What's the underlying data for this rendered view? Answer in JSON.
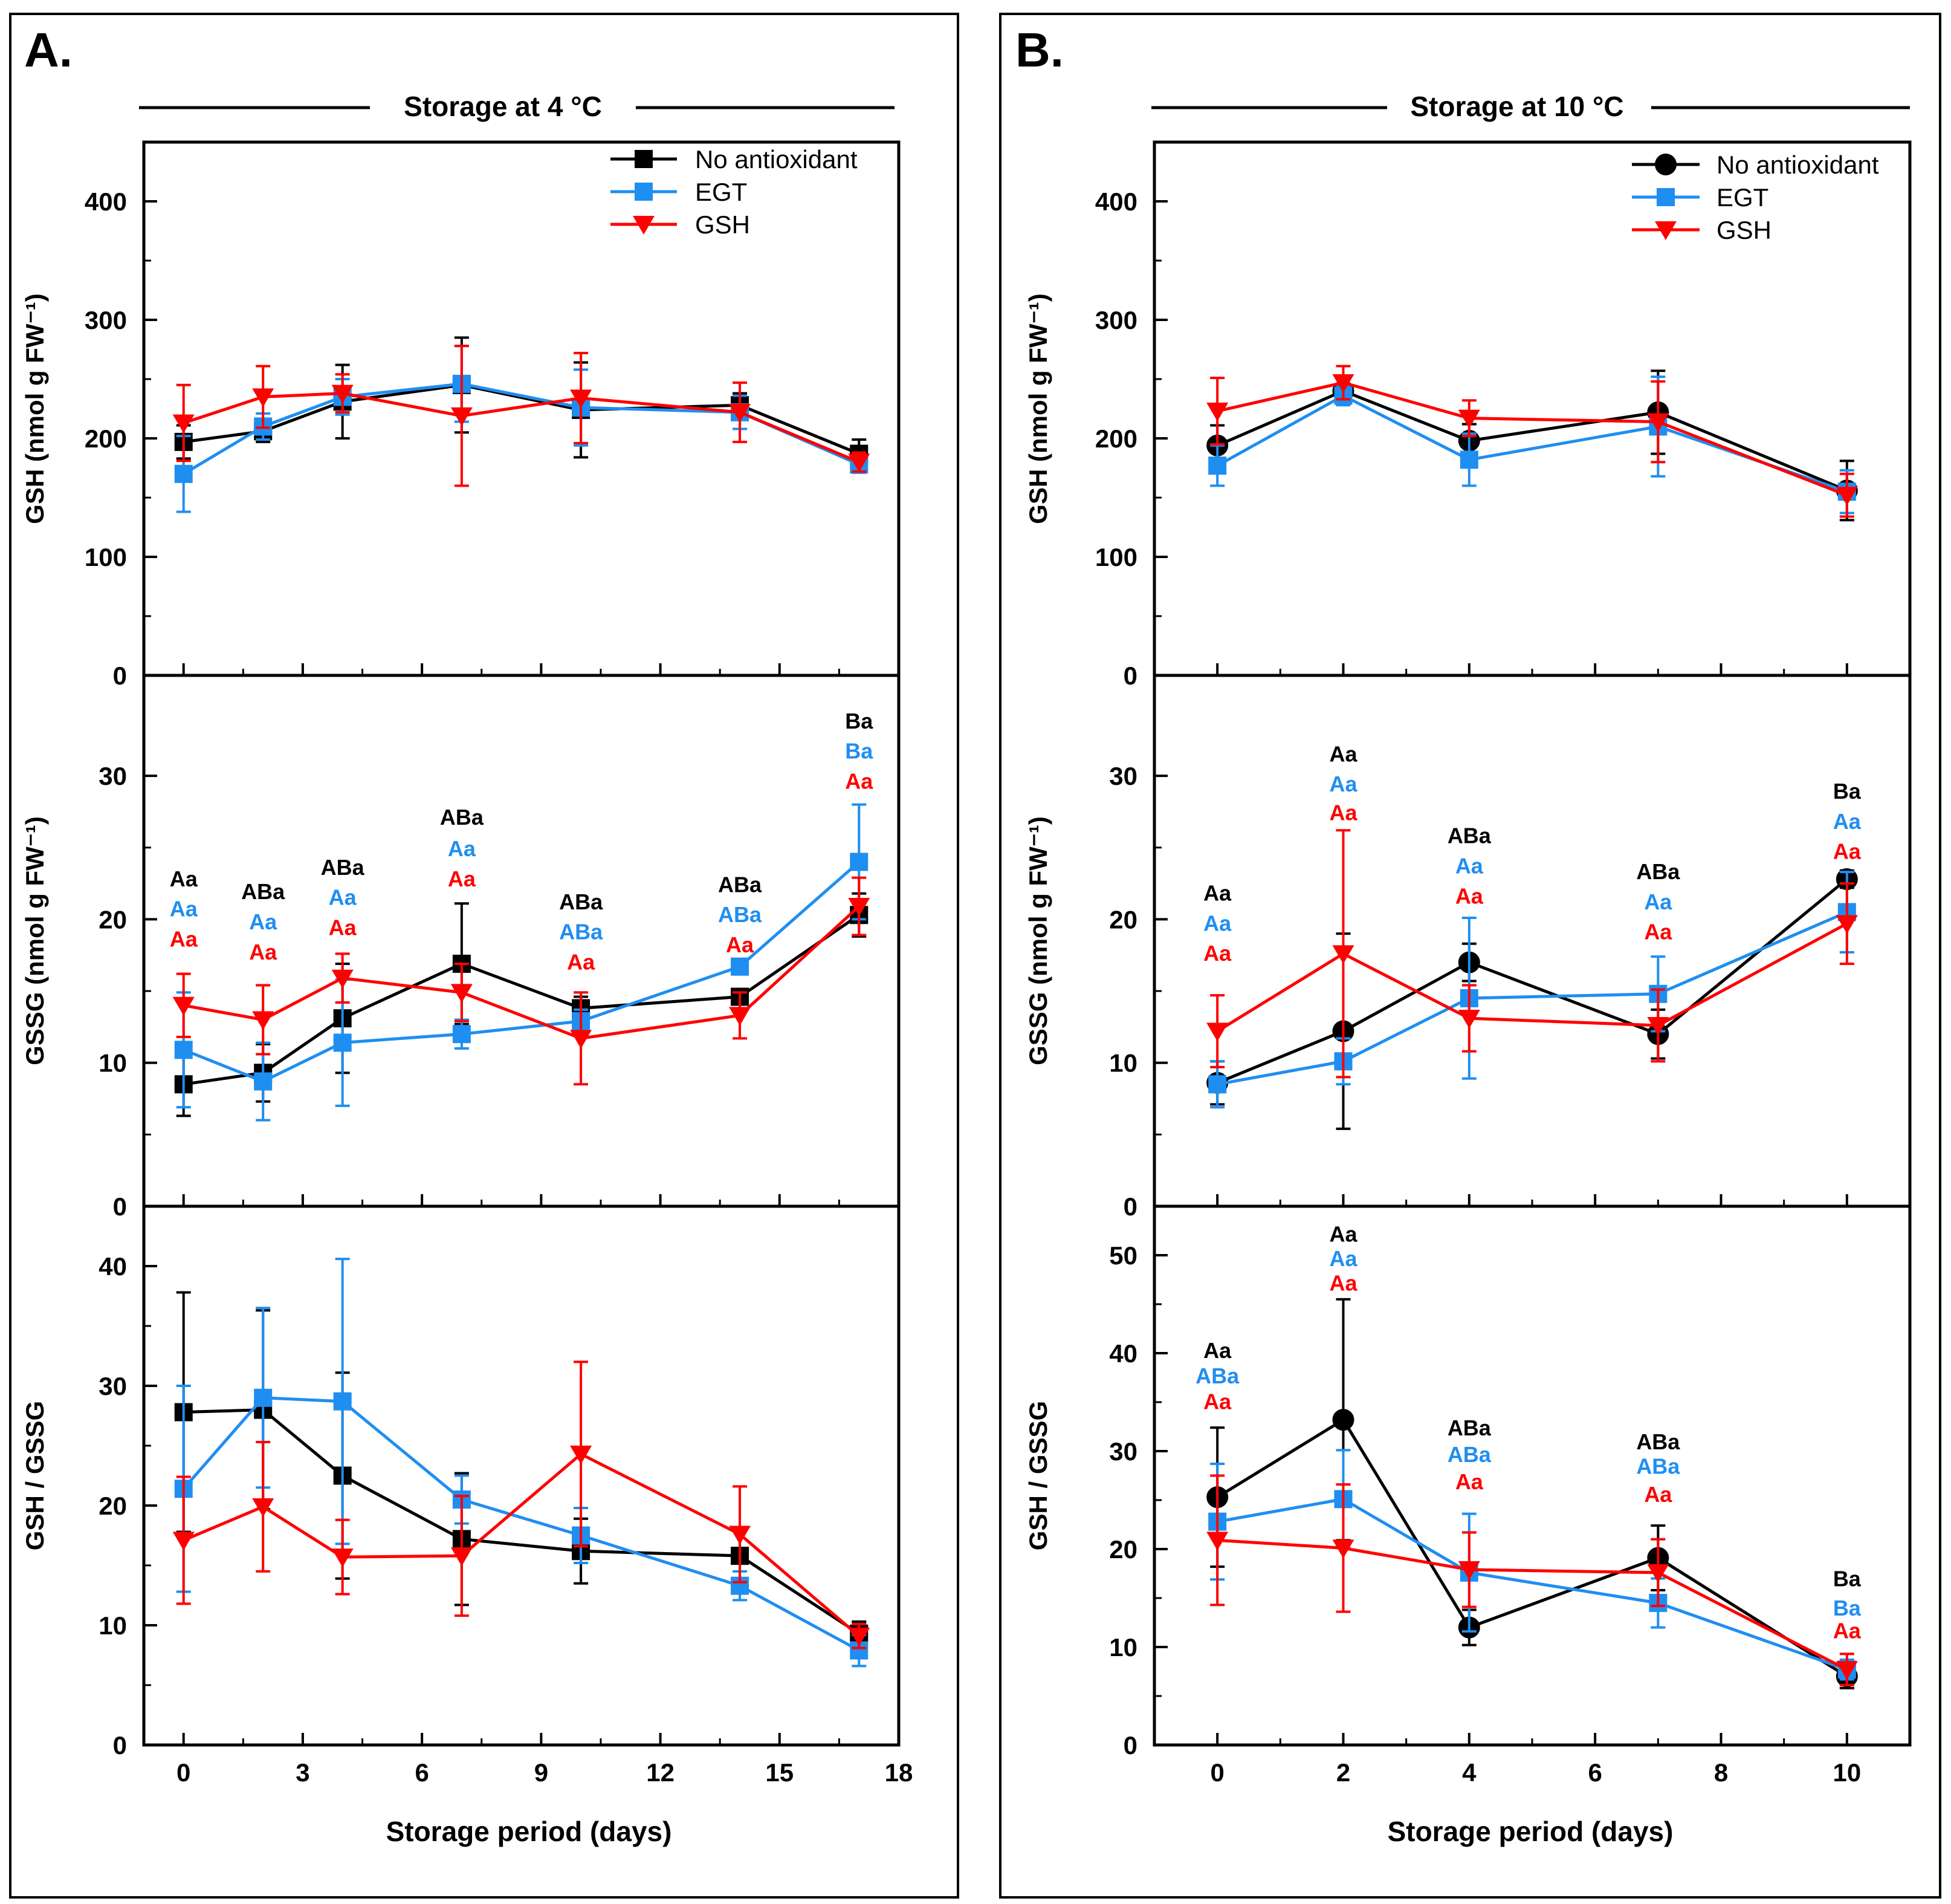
{
  "colors": {
    "black": "#000000",
    "blue": "#1f8ef1",
    "red": "#ff0000"
  },
  "chart_data": [
    {
      "panel": "A.",
      "type": "line",
      "header": "Storage at 4 °C",
      "xlabel": "Storage period (days)",
      "xlim": [
        -1,
        18
      ],
      "xticks": [
        0,
        3,
        6,
        9,
        12,
        15,
        18
      ],
      "x": [
        0,
        2,
        4,
        7,
        10,
        14,
        17
      ],
      "legend": {
        "position": "top-right",
        "entries": [
          "No antioxidant",
          "EGT",
          "GSH"
        ]
      },
      "subplots": [
        {
          "ylabel": "GSH (nmol g FW⁻¹)",
          "ylim": [
            0,
            450
          ],
          "yticks": [
            0,
            100,
            200,
            300,
            400
          ],
          "series": [
            {
              "name": "No antioxidant",
              "values": [
                197,
                206,
                231,
                245,
                224,
                228,
                187
              ],
              "errors": [
                14,
                9,
                31,
                40,
                40,
                10,
                12
              ]
            },
            {
              "name": "EGT",
              "values": [
                170,
                210,
                235,
                246,
                226,
                222,
                178
              ],
              "errors": [
                32,
                11,
                15,
                32,
                32,
                14,
                7
              ]
            },
            {
              "name": "GSH",
              "values": [
                213,
                235,
                238,
                219,
                234,
                222,
                180
              ],
              "errors": [
                32,
                26,
                16,
                59,
                38,
                25,
                8
              ]
            }
          ],
          "annotations": []
        },
        {
          "ylabel": "GSSG (nmol g FW⁻¹)",
          "ylim": [
            0,
            37
          ],
          "yticks": [
            0,
            10,
            20,
            30
          ],
          "series": [
            {
              "name": "No antioxidant",
              "values": [
                8.5,
                9.3,
                13.1,
                16.9,
                13.8,
                14.6,
                20.3
              ],
              "errors": [
                2.2,
                2.0,
                3.8,
                4.2,
                0.8,
                0.5,
                1.5
              ]
            },
            {
              "name": "EGT",
              "values": [
                10.9,
                8.7,
                11.4,
                12.0,
                12.9,
                16.7,
                24.0
              ],
              "errors": [
                4.0,
                2.7,
                4.4,
                1.0,
                0.8,
                0.5,
                4.0
              ]
            },
            {
              "name": "GSH",
              "values": [
                14.0,
                13.0,
                15.9,
                14.9,
                11.7,
                13.3,
                20.9
              ],
              "errors": [
                2.2,
                2.4,
                1.7,
                2.0,
                3.2,
                1.6,
                2.0
              ]
            }
          ],
          "annotations": [
            {
              "x": 0,
              "y": [
                22.3,
                20.2,
                18.1
              ],
              "labels": [
                "Aa",
                "Aa",
                "Aa"
              ]
            },
            {
              "x": 2,
              "y": [
                21.4,
                19.3,
                17.2
              ],
              "labels": [
                "ABa",
                "Aa",
                "Aa"
              ]
            },
            {
              "x": 4,
              "y": [
                23.1,
                21.0,
                18.9
              ],
              "labels": [
                "ABa",
                "Aa",
                "Aa"
              ]
            },
            {
              "x": 7,
              "y": [
                26.6,
                24.4,
                22.3
              ],
              "labels": [
                "ABa",
                "Aa",
                "Aa"
              ]
            },
            {
              "x": 10,
              "y": [
                20.7,
                18.6,
                16.5
              ],
              "labels": [
                "ABa",
                "ABa",
                "Aa"
              ]
            },
            {
              "x": 14,
              "y": [
                21.9,
                19.8,
                17.7
              ],
              "labels": [
                "ABa",
                "ABa",
                "Aa"
              ]
            },
            {
              "x": 17,
              "y": [
                33.3,
                31.2,
                29.1
              ],
              "labels": [
                "Ba",
                "Ba",
                "Aa"
              ]
            }
          ]
        },
        {
          "ylabel": "GSH / GSSG",
          "ylim": [
            0,
            45
          ],
          "yticks": [
            0,
            10,
            20,
            30,
            40
          ],
          "series": [
            {
              "name": "No antioxidant",
              "values": [
                27.8,
                28.0,
                22.5,
                17.2,
                16.2,
                15.8,
                9.3
              ],
              "errors": [
                10.0,
                8.3,
                8.6,
                5.5,
                2.7,
                2.4,
                1.0
              ]
            },
            {
              "name": "EGT",
              "values": [
                21.4,
                29.0,
                28.7,
                20.5,
                17.5,
                13.3,
                7.9
              ],
              "errors": [
                8.6,
                7.5,
                11.9,
                2.0,
                2.3,
                1.2,
                1.3
              ]
            },
            {
              "name": "GSH",
              "values": [
                17.1,
                19.9,
                15.7,
                15.8,
                24.3,
                17.6,
                9.1
              ],
              "errors": [
                5.3,
                5.4,
                3.1,
                5.0,
                7.7,
                4.0,
                1.0
              ]
            }
          ],
          "annotations": []
        }
      ]
    },
    {
      "panel": "B.",
      "type": "line",
      "header": "Storage at 10 °C",
      "xlabel": "Storage period (days)",
      "xlim": [
        -1,
        11
      ],
      "xticks": [
        0,
        2,
        4,
        6,
        8,
        10
      ],
      "x": [
        0,
        2,
        4,
        7,
        10
      ],
      "legend": {
        "position": "top-right",
        "entries": [
          "No antioxidant",
          "EGT",
          "GSH"
        ]
      },
      "subplots": [
        {
          "ylabel": "GSH (nmol g FW⁻¹)",
          "ylim": [
            0,
            450
          ],
          "yticks": [
            0,
            100,
            200,
            300,
            400
          ],
          "series": [
            {
              "name": "No antioxidant",
              "values": [
                194,
                240,
                198,
                222,
                156
              ],
              "errors": [
                17,
                10,
                14,
                35,
                25
              ]
            },
            {
              "name": "EGT",
              "values": [
                177,
                236,
                182,
                210,
                155
              ],
              "errors": [
                17,
                8,
                22,
                42,
                18
              ]
            },
            {
              "name": "GSH",
              "values": [
                223,
                247,
                217,
                214,
                152
              ],
              "errors": [
                28,
                14,
                15,
                34,
                18
              ]
            }
          ],
          "annotations": []
        },
        {
          "ylabel": "GSSG (nmol g FW⁻¹)",
          "ylim": [
            0,
            37
          ],
          "yticks": [
            0,
            10,
            20,
            30
          ],
          "series": [
            {
              "name": "No antioxidant",
              "values": [
                8.6,
                12.2,
                17.0,
                12.0,
                22.8
              ],
              "errors": [
                1.5,
                6.8,
                1.3,
                1.7,
                0.6
              ]
            },
            {
              "name": "EGT",
              "values": [
                8.5,
                10.1,
                14.5,
                14.8,
                20.5
              ],
              "errors": [
                1.6,
                1.6,
                5.6,
                2.6,
                2.8
              ]
            },
            {
              "name": "GSH",
              "values": [
                12.2,
                17.6,
                13.1,
                12.6,
                19.7
              ],
              "errors": [
                2.5,
                8.6,
                2.3,
                2.5,
                2.8
              ]
            }
          ],
          "annotations": [
            {
              "x": 0,
              "y": [
                21.3,
                19.2,
                17.1
              ],
              "labels": [
                "Aa",
                "Aa",
                "Aa"
              ]
            },
            {
              "x": 2,
              "y": [
                31.0,
                28.9,
                26.9
              ],
              "labels": [
                "Aa",
                "Aa",
                "Aa"
              ]
            },
            {
              "x": 4,
              "y": [
                25.3,
                23.2,
                21.1
              ],
              "labels": [
                "ABa",
                "Aa",
                "Aa"
              ]
            },
            {
              "x": 7,
              "y": [
                22.8,
                20.7,
                18.6
              ],
              "labels": [
                "ABa",
                "Aa",
                "Aa"
              ]
            },
            {
              "x": 10,
              "y": [
                28.4,
                26.3,
                24.2
              ],
              "labels": [
                "Ba",
                "Aa",
                "Aa"
              ]
            }
          ]
        },
        {
          "ylabel": "GSH / GSSG",
          "ylim": [
            0,
            55
          ],
          "yticks": [
            0,
            10,
            20,
            30,
            40,
            50
          ],
          "series": [
            {
              "name": "No antioxidant",
              "values": [
                25.3,
                33.2,
                12.0,
                19.1,
                7.0
              ],
              "errors": [
                7.1,
                12.3,
                1.8,
                3.3,
                1.2
              ]
            },
            {
              "name": "EGT",
              "values": [
                22.8,
                25.1,
                17.6,
                14.5,
                7.7
              ],
              "errors": [
                5.9,
                5.0,
                6.0,
                2.5,
                1.0
              ]
            },
            {
              "name": "GSH",
              "values": [
                20.9,
                20.1,
                17.9,
                17.6,
                7.7
              ],
              "errors": [
                6.6,
                6.5,
                3.8,
                3.4,
                1.6
              ]
            }
          ],
          "annotations": [
            {
              "x": 0,
              "y": [
                39.5,
                36.9,
                34.3
              ],
              "labels": [
                "Aa",
                "ABa",
                "Aa"
              ]
            },
            {
              "x": 2,
              "y": [
                51.4,
                48.9,
                46.4
              ],
              "labels": [
                "Aa",
                "Aa",
                "Aa"
              ]
            },
            {
              "x": 4,
              "y": [
                31.6,
                28.9,
                26.1
              ],
              "labels": [
                "ABa",
                "ABa",
                "Aa"
              ]
            },
            {
              "x": 7,
              "y": [
                30.2,
                27.7,
                24.8
              ],
              "labels": [
                "ABa",
                "ABa",
                "Aa"
              ]
            },
            {
              "x": 10,
              "y": [
                16.2,
                13.2,
                10.9
              ],
              "labels": [
                "Ba",
                "Ba",
                "Aa"
              ]
            }
          ]
        }
      ]
    }
  ]
}
